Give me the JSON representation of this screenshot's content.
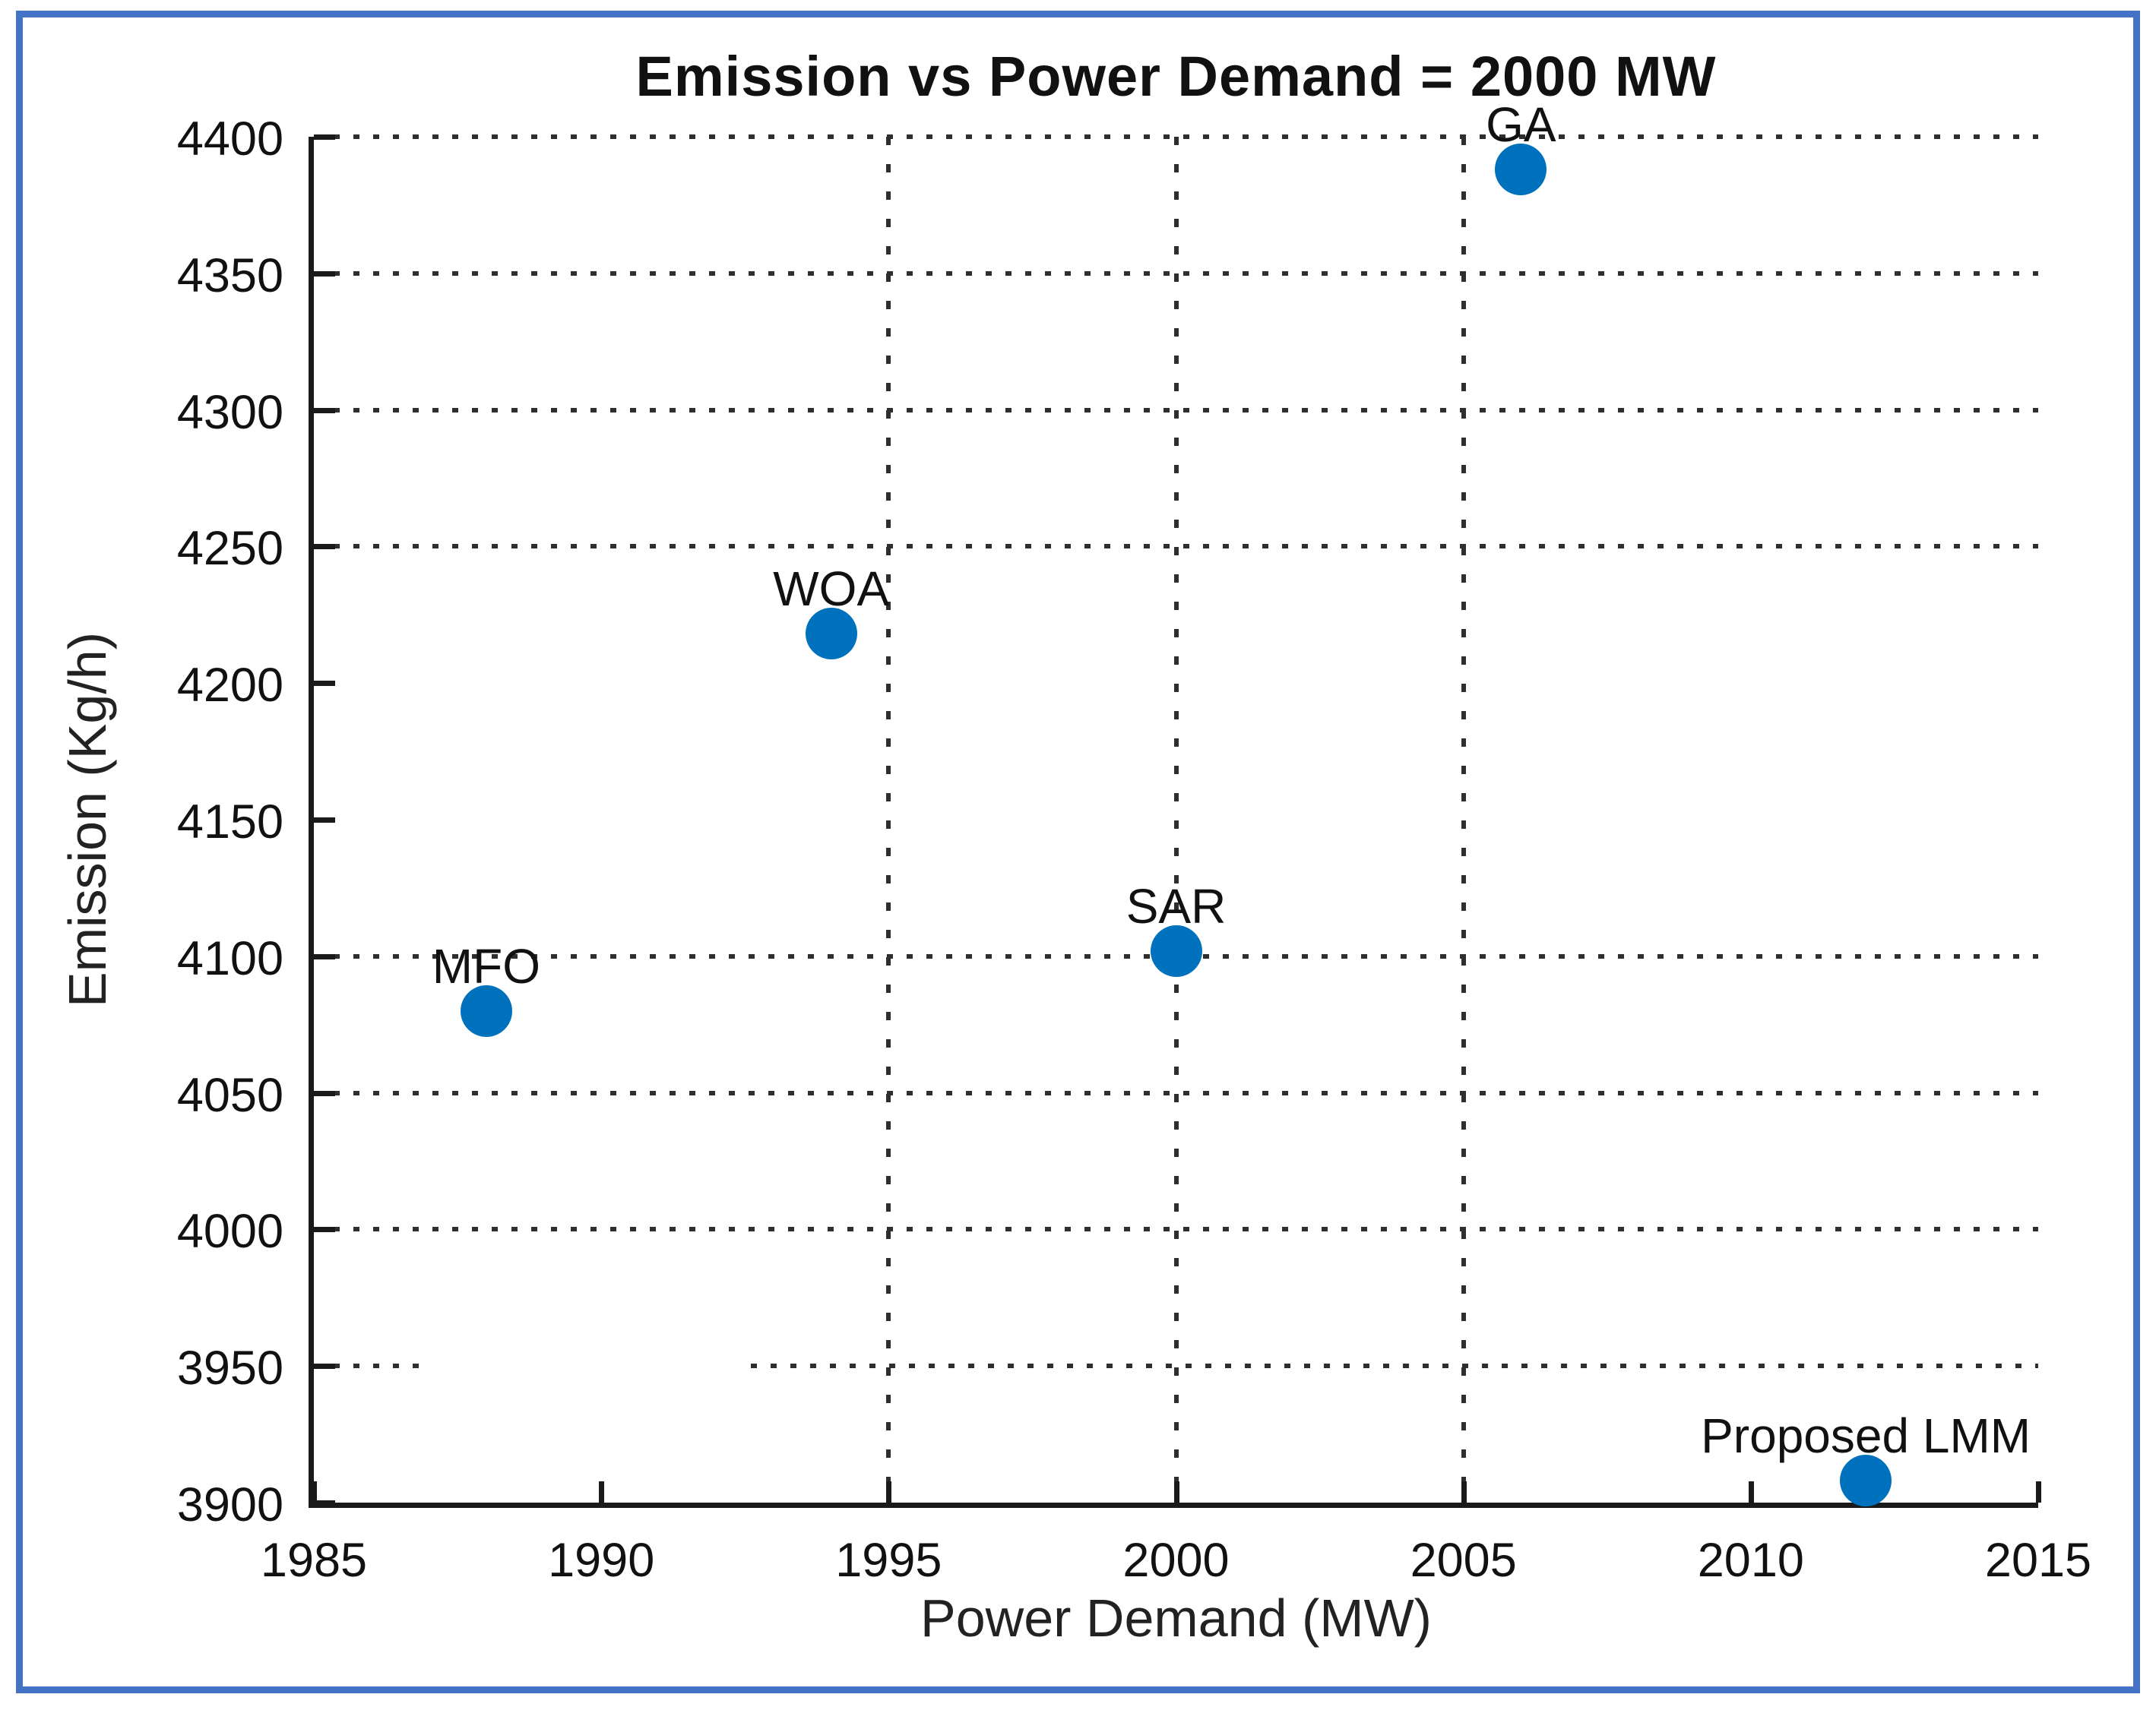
{
  "frame": {
    "border_color": "#4472C4"
  },
  "chart_data": {
    "type": "scatter",
    "title": "Emission vs Power Demand = 2000 MW",
    "xlabel": "Power Demand (MW)",
    "ylabel": "Emission (Kg/h)",
    "xlim": [
      1985,
      2015
    ],
    "ylim": [
      3900,
      4400
    ],
    "x_ticks": [
      1985,
      1990,
      1995,
      2000,
      2005,
      2010,
      2015
    ],
    "y_ticks": [
      3900,
      3950,
      4000,
      4050,
      4100,
      4150,
      4200,
      4250,
      4300,
      4350,
      4400
    ],
    "grid_style": "dotted",
    "legend": "none",
    "marker_color": "#0072BD",
    "h_gridlines": [
      {
        "y": 4400,
        "segments": [
          [
            1985,
            2015
          ]
        ]
      },
      {
        "y": 4350,
        "segments": [
          [
            1985,
            2015
          ]
        ]
      },
      {
        "y": 4300,
        "segments": [
          [
            1985,
            2015
          ]
        ]
      },
      {
        "y": 4250,
        "segments": [
          [
            1985,
            2015
          ]
        ]
      },
      {
        "y": 4100,
        "segments": [
          [
            1985,
            2015
          ]
        ]
      },
      {
        "y": 4050,
        "segments": [
          [
            1985,
            2015
          ]
        ]
      },
      {
        "y": 4000,
        "segments": [
          [
            1985,
            2015
          ]
        ]
      },
      {
        "y": 3950,
        "segments": [
          [
            1985,
            1987
          ],
          [
            1992.6,
            2015
          ]
        ]
      }
    ],
    "v_gridlines": [
      1995,
      2000,
      2005
    ],
    "points": [
      {
        "label": "MFO",
        "x": 1988,
        "y": 4080
      },
      {
        "label": "WOA",
        "x": 1994,
        "y": 4218
      },
      {
        "label": "SAR",
        "x": 2000,
        "y": 4102
      },
      {
        "label": "GA",
        "x": 2006,
        "y": 4388
      },
      {
        "label": "Proposed LMM",
        "x": 2012,
        "y": 3908
      }
    ]
  }
}
